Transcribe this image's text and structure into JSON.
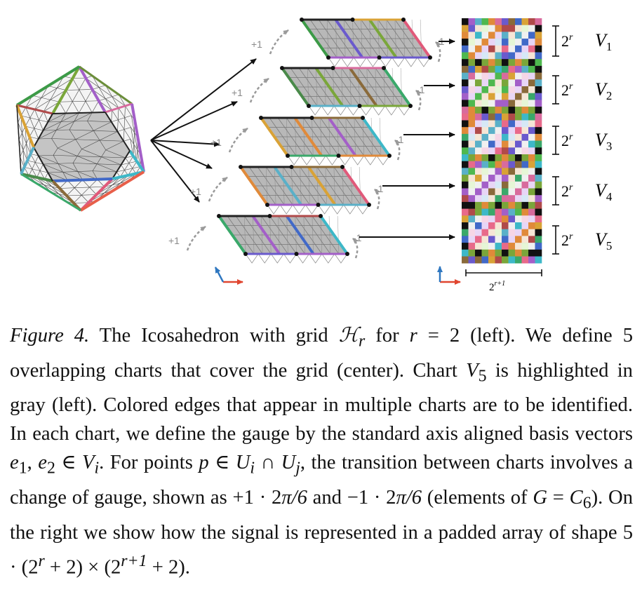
{
  "figure": {
    "charts": [
      {
        "name": "V",
        "index": "1",
        "span": "2",
        "span_exp": "r",
        "plus": "+1",
        "minus": "-1"
      },
      {
        "name": "V",
        "index": "2",
        "span": "2",
        "span_exp": "r",
        "plus": "+1",
        "minus": "-1"
      },
      {
        "name": "V",
        "index": "3",
        "span": "2",
        "span_exp": "r",
        "plus": "+1",
        "minus": "-1"
      },
      {
        "name": "V",
        "index": "4",
        "span": "2",
        "span_exp": "r",
        "plus": "+1",
        "minus": "-1"
      },
      {
        "name": "V",
        "index": "5",
        "span": "2",
        "span_exp": "r",
        "plus": "+1",
        "minus": "-1"
      }
    ],
    "width_label": "2",
    "width_label_exp": "r+1",
    "axis_colors": {
      "x": "#e0452f",
      "y": "#2f77c0"
    },
    "chart_highlight": "#b8b8b8"
  },
  "caption": {
    "label": "Figure 4.",
    "s1a": " The Icosahedron with grid ",
    "H": "ℋ",
    "r": "r",
    "s1b": " for ",
    "s1c": " = 2 (left). We define 5 overlapping charts that cover the grid (center). Chart ",
    "V": "V",
    "five": "5",
    "s2": " is highlighted in gray (left). Colored edges that appear in multiple charts are to be identified. In each chart, we define the gauge by the standard axis aligned basis vectors ",
    "e": "e",
    "one": "1",
    "two": "2",
    "s3": ", ",
    "in": " ∈ ",
    "i": "i",
    "j": "j",
    "s4": ". For points ",
    "p": "p",
    "U": "U",
    "cap": " ∩ ",
    "s5": ", the transition between charts involves a change of gauge, shown as ",
    "plus_one": "+1 · 2",
    "pi6": "π/6",
    "s6": " and ",
    "minus_one": "−1 · 2",
    "s7": " (elements of ",
    "G": "G",
    "eq": " = ",
    "C": "C",
    "six": "6",
    "s8": "). On the right we show how the signal is represented in a padded array of shape ",
    "shape_a": "5 · (2",
    "shape_b": " + 2) × (2",
    "rp1": "r+1",
    "shape_c": " + 2)."
  }
}
